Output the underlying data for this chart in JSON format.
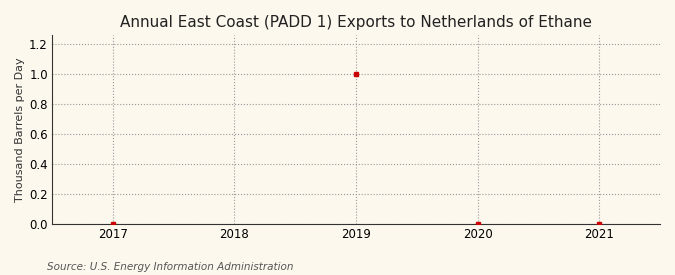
{
  "title": "Annual East Coast (PADD 1) Exports to Netherlands of Ethane",
  "ylabel": "Thousand Barrels per Day",
  "source": "Source: U.S. Energy Information Administration",
  "xlim": [
    2016.5,
    2021.5
  ],
  "ylim": [
    0.0,
    1.26
  ],
  "yticks": [
    0.0,
    0.2,
    0.4,
    0.6,
    0.8,
    1.0,
    1.2
  ],
  "xticks": [
    2017,
    2018,
    2019,
    2020,
    2021
  ],
  "data_x": [
    2017,
    2019,
    2020,
    2021
  ],
  "data_y": [
    0.0,
    1.0,
    0.0,
    0.0
  ],
  "point_color": "#cc0000",
  "point_marker": "s",
  "point_size": 3,
  "bg_color": "#fdf8ee",
  "grid_color": "#999999",
  "title_fontsize": 11,
  "label_fontsize": 8,
  "tick_fontsize": 8.5,
  "source_fontsize": 7.5
}
